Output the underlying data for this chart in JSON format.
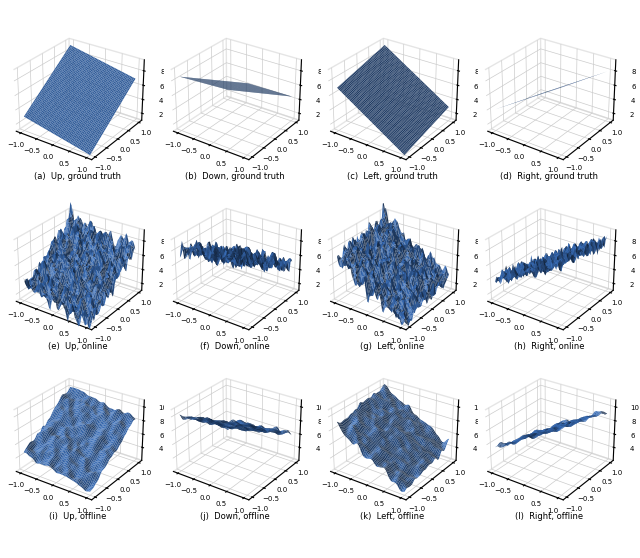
{
  "rows": 3,
  "cols": 4,
  "captions": [
    [
      "(a)  Up, ground truth",
      "(b)  Down, ground truth",
      "(c)  Left, ground truth",
      "(d)  Right, ground truth"
    ],
    [
      "(e)  Up, online",
      "(f)  Down, online",
      "(g)  Left, online",
      "(h)  Right, online"
    ],
    [
      "(i)  Up, offline",
      "(j)  Down, offline",
      "(k)  Left, offline",
      "(l)  Right, offline"
    ]
  ],
  "surface_color": "#3a6fba",
  "figsize": [
    6.4,
    5.58
  ],
  "dpi": 100,
  "noise_online": 0.55,
  "noise_offline": 0.35,
  "elev": 28,
  "azim": -55
}
